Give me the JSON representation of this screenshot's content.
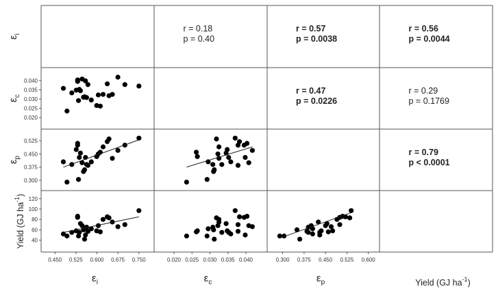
{
  "chart_data": {
    "type": "scatter",
    "layout": "scatterplot-matrix",
    "variables": [
      {
        "key": "ei",
        "symbol": "ε",
        "sub": "i",
        "sup": "",
        "tail": ""
      },
      {
        "key": "ec",
        "symbol": "ε",
        "sub": "c",
        "sup": "",
        "tail": ""
      },
      {
        "key": "ep",
        "symbol": "ε",
        "sub": "p",
        "sup": "",
        "tail": ""
      },
      {
        "key": "yield",
        "symbol": "Yield (GJ ha",
        "sub": "",
        "sup": "-1",
        "tail": ")"
      }
    ],
    "axes": {
      "ei": {
        "range": [
          0.42,
          0.78
        ],
        "ticks": [
          "0.450",
          "0.525",
          "0.600",
          "0.675",
          "0.750"
        ]
      },
      "ec": {
        "range": [
          0.016,
          0.044
        ],
        "ticks": [
          "0.020",
          "0.025",
          "0.030",
          "0.035",
          "0.040"
        ]
      },
      "ep": {
        "range": [
          0.265,
          0.56
        ],
        "ticks": [
          "0.300",
          "0.375",
          "0.450",
          "0.525"
        ]
      },
      "ep_x": {
        "range": [
          0.265,
          0.615
        ],
        "ticks": [
          "0.300",
          "0.375",
          "0.450",
          "0.525",
          "0.600"
        ]
      },
      "yield": {
        "range": [
          25,
          125
        ],
        "ticks": [
          "40",
          "60",
          "80",
          "100",
          "120"
        ]
      }
    },
    "points": [
      {
        "ei": 0.48,
        "ec": 0.0358,
        "ep": 0.405,
        "yield": 52
      },
      {
        "ei": 0.493,
        "ec": 0.0235,
        "ep": 0.29,
        "yield": 48
      },
      {
        "ei": 0.51,
        "ec": 0.0333,
        "ep": 0.39,
        "yield": 55
      },
      {
        "ei": 0.526,
        "ec": 0.0348,
        "ep": 0.475,
        "yield": 58
      },
      {
        "ei": 0.531,
        "ec": 0.0395,
        "ep": 0.5,
        "yield": 84
      },
      {
        "ei": 0.531,
        "ec": 0.0403,
        "ep": 0.51,
        "yield": 86
      },
      {
        "ei": 0.534,
        "ec": 0.0292,
        "ep": 0.305,
        "yield": 48
      },
      {
        "ei": 0.537,
        "ec": 0.0352,
        "ep": 0.43,
        "yield": 55
      },
      {
        "ei": 0.541,
        "ec": 0.0345,
        "ep": 0.455,
        "yield": 72
      },
      {
        "ei": 0.547,
        "ec": 0.0408,
        "ep": 0.4,
        "yield": 68
      },
      {
        "ei": 0.552,
        "ec": 0.031,
        "ep": 0.35,
        "yield": 60
      },
      {
        "ei": 0.556,
        "ec": 0.0312,
        "ep": 0.36,
        "yield": 42
      },
      {
        "ei": 0.559,
        "ec": 0.0398,
        "ep": 0.43,
        "yield": 50
      },
      {
        "ei": 0.563,
        "ec": 0.0308,
        "ep": 0.39,
        "yield": 65
      },
      {
        "ei": 0.568,
        "ec": 0.0378,
        "ep": 0.385,
        "yield": 57
      },
      {
        "ei": 0.58,
        "ec": 0.0295,
        "ep": 0.405,
        "yield": 62
      },
      {
        "ei": 0.599,
        "ec": 0.0265,
        "ep": 0.435,
        "yield": 58
      },
      {
        "ei": 0.605,
        "ec": 0.0322,
        "ep": 0.45,
        "yield": 68
      },
      {
        "ei": 0.612,
        "ec": 0.0262,
        "ep": 0.46,
        "yield": 56
      },
      {
        "ei": 0.622,
        "ec": 0.0325,
        "ep": 0.49,
        "yield": 80
      },
      {
        "ei": 0.637,
        "ec": 0.0382,
        "ep": 0.52,
        "yield": 85
      },
      {
        "ei": 0.643,
        "ec": 0.0318,
        "ep": 0.535,
        "yield": 83
      },
      {
        "ei": 0.655,
        "ec": 0.0325,
        "ep": 0.425,
        "yield": 75
      },
      {
        "ei": 0.675,
        "ec": 0.0418,
        "ep": 0.47,
        "yield": 66
      },
      {
        "ei": 0.7,
        "ec": 0.0378,
        "ep": 0.5,
        "yield": 70
      },
      {
        "ei": 0.75,
        "ec": 0.037,
        "ep": 0.54,
        "yield": 97
      }
    ],
    "trend_lines": [
      {
        "x": "ei",
        "y": "ep",
        "from": [
          0.48,
          0.375
        ],
        "to": [
          0.75,
          0.53
        ]
      },
      {
        "x": "ec",
        "y": "ep",
        "from": [
          0.0235,
          0.375
        ],
        "to": [
          0.0418,
          0.49
        ]
      },
      {
        "x": "ei",
        "y": "yield",
        "from": [
          0.48,
          55
        ],
        "to": [
          0.75,
          85
        ]
      },
      {
        "x": "ep",
        "y": "yield",
        "from": [
          0.29,
          44
        ],
        "to": [
          0.54,
          93
        ]
      }
    ],
    "correlations": [
      {
        "row": 0,
        "col": 1,
        "r": "r = 0.18",
        "p": "p = 0.40",
        "bold": false
      },
      {
        "row": 0,
        "col": 2,
        "r": "r = 0.57",
        "p": "p = 0.0038",
        "bold": true
      },
      {
        "row": 0,
        "col": 3,
        "r": "r = 0.56",
        "p": "p = 0.0044",
        "bold": true
      },
      {
        "row": 1,
        "col": 2,
        "r": "r = 0.47",
        "p": "p = 0.0226",
        "bold": true
      },
      {
        "row": 1,
        "col": 3,
        "r": "r = 0.29",
        "p": "p = 0.1769",
        "bold": false
      },
      {
        "row": 2,
        "col": 3,
        "r": "r = 0.79",
        "p": "p < 0.0001",
        "bold": true
      }
    ],
    "grid": false
  }
}
